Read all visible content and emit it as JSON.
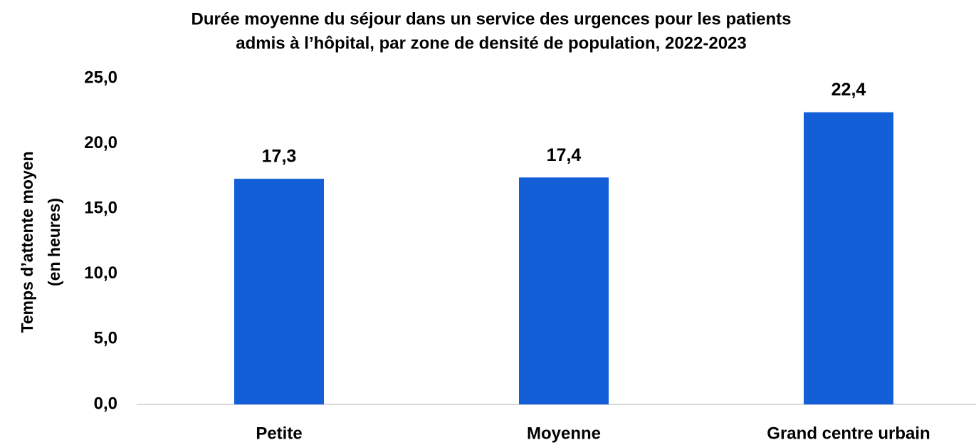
{
  "chart_data": {
    "type": "bar",
    "title": [
      "Durée moyenne du séjour dans un service des urgences pour les patients",
      "admis à l’hôpital, par zone de densité de population, 2022-2023"
    ],
    "ylabel": [
      "Temps d’attente moyen",
      "(en heures)"
    ],
    "categories": [
      "Petite",
      "Moyenne",
      "Grand centre urbain"
    ],
    "values": [
      17.3,
      17.4,
      22.4
    ],
    "value_labels": [
      "17,3",
      "17,4",
      "22,4"
    ],
    "color": "#135fd7",
    "ylim": [
      0,
      25
    ],
    "yticks": [
      {
        "value": 0,
        "label": "0,0"
      },
      {
        "value": 5,
        "label": "5,0"
      },
      {
        "value": 10,
        "label": "10,0"
      },
      {
        "value": 15,
        "label": "15,0"
      },
      {
        "value": 20,
        "label": "20,0"
      },
      {
        "value": 25,
        "label": "25,0"
      }
    ],
    "grid": false
  }
}
